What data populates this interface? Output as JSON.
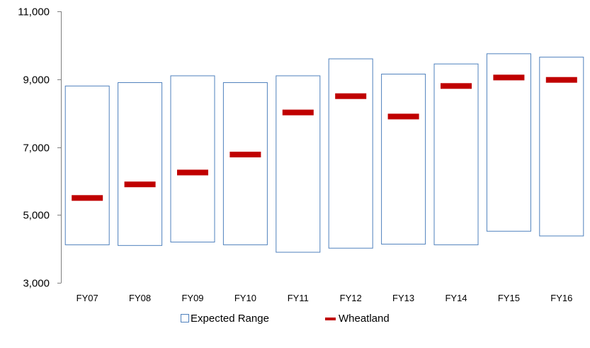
{
  "chart_data": {
    "type": "bar",
    "categories": [
      "FY07",
      "FY08",
      "FY09",
      "FY10",
      "FY11",
      "FY12",
      "FY13",
      "FY14",
      "FY15",
      "FY16"
    ],
    "series": [
      {
        "name": "Expected Range",
        "kind": "range",
        "low": [
          4120,
          4100,
          4200,
          4120,
          3900,
          4020,
          4140,
          4120,
          4520,
          4380
        ],
        "high": [
          8800,
          8900,
          9100,
          8900,
          9100,
          9600,
          9150,
          9450,
          9750,
          9650
        ],
        "color": "#4f81bd"
      },
      {
        "name": "Wheatland",
        "kind": "marker",
        "values": [
          5500,
          5900,
          6250,
          6780,
          8020,
          8500,
          7900,
          8800,
          9050,
          8980
        ],
        "color": "#c00000"
      }
    ],
    "y_ticks": [
      "3,000",
      "5,000",
      "7,000",
      "9,000",
      "11,000"
    ],
    "ylim": [
      3000,
      11000
    ],
    "grid": false,
    "legend": "bottom"
  }
}
